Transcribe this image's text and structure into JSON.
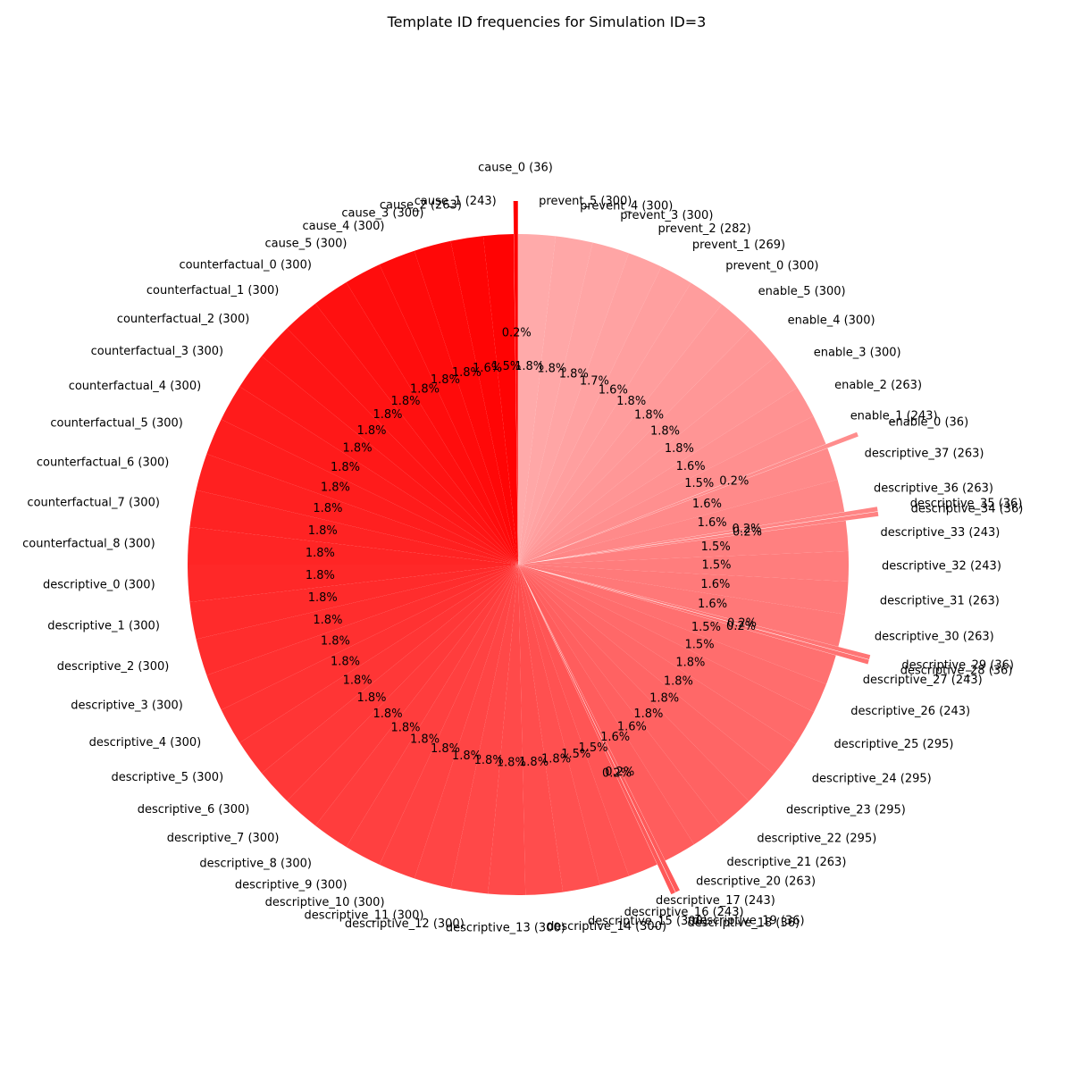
{
  "chart_data": {
    "type": "pie",
    "title": "Template ID frequencies for Simulation ID=3",
    "start_angle_deg": 90,
    "direction": "counterclockwise",
    "color_start": "#ff0000",
    "color_end": "#ffaaaa",
    "slices": [
      {
        "label": "cause_0 (36)",
        "value": 36,
        "pct": "0.2%"
      },
      {
        "label": "cause_1 (243)",
        "value": 243,
        "pct": "1.5%"
      },
      {
        "label": "cause_2 (263)",
        "value": 263,
        "pct": "1.6%"
      },
      {
        "label": "cause_3 (300)",
        "value": 300,
        "pct": "1.8%"
      },
      {
        "label": "cause_4 (300)",
        "value": 300,
        "pct": "1.8%"
      },
      {
        "label": "cause_5 (300)",
        "value": 300,
        "pct": "1.8%"
      },
      {
        "label": "counterfactual_0 (300)",
        "value": 300,
        "pct": "1.8%"
      },
      {
        "label": "counterfactual_1 (300)",
        "value": 300,
        "pct": "1.8%"
      },
      {
        "label": "counterfactual_2 (300)",
        "value": 300,
        "pct": "1.8%"
      },
      {
        "label": "counterfactual_3 (300)",
        "value": 300,
        "pct": "1.8%"
      },
      {
        "label": "counterfactual_4 (300)",
        "value": 300,
        "pct": "1.8%"
      },
      {
        "label": "counterfactual_5 (300)",
        "value": 300,
        "pct": "1.8%"
      },
      {
        "label": "counterfactual_6 (300)",
        "value": 300,
        "pct": "1.8%"
      },
      {
        "label": "counterfactual_7 (300)",
        "value": 300,
        "pct": "1.8%"
      },
      {
        "label": "counterfactual_8 (300)",
        "value": 300,
        "pct": "1.8%"
      },
      {
        "label": "descriptive_0 (300)",
        "value": 300,
        "pct": "1.8%"
      },
      {
        "label": "descriptive_1 (300)",
        "value": 300,
        "pct": "1.8%"
      },
      {
        "label": "descriptive_2 (300)",
        "value": 300,
        "pct": "1.8%"
      },
      {
        "label": "descriptive_3 (300)",
        "value": 300,
        "pct": "1.8%"
      },
      {
        "label": "descriptive_4 (300)",
        "value": 300,
        "pct": "1.8%"
      },
      {
        "label": "descriptive_5 (300)",
        "value": 300,
        "pct": "1.8%"
      },
      {
        "label": "descriptive_6 (300)",
        "value": 300,
        "pct": "1.8%"
      },
      {
        "label": "descriptive_7 (300)",
        "value": 300,
        "pct": "1.8%"
      },
      {
        "label": "descriptive_8 (300)",
        "value": 300,
        "pct": "1.8%"
      },
      {
        "label": "descriptive_9 (300)",
        "value": 300,
        "pct": "1.8%"
      },
      {
        "label": "descriptive_10 (300)",
        "value": 300,
        "pct": "1.8%"
      },
      {
        "label": "descriptive_11 (300)",
        "value": 300,
        "pct": "1.8%"
      },
      {
        "label": "descriptive_12 (300)",
        "value": 300,
        "pct": "1.8%"
      },
      {
        "label": "descriptive_13 (300)",
        "value": 300,
        "pct": "1.8%"
      },
      {
        "label": "descriptive_14 (300)",
        "value": 300,
        "pct": "1.8%"
      },
      {
        "label": "descriptive_15 (300)",
        "value": 300,
        "pct": "1.8%"
      },
      {
        "label": "descriptive_16 (243)",
        "value": 243,
        "pct": "1.5%"
      },
      {
        "label": "descriptive_17 (243)",
        "value": 243,
        "pct": "1.5%"
      },
      {
        "label": "descriptive_18 (36)",
        "value": 36,
        "pct": "0.2%"
      },
      {
        "label": "descriptive_19 (36)",
        "value": 36,
        "pct": "0.2%"
      },
      {
        "label": "descriptive_20 (263)",
        "value": 263,
        "pct": "1.6%"
      },
      {
        "label": "descriptive_21 (263)",
        "value": 263,
        "pct": "1.6%"
      },
      {
        "label": "descriptive_22 (295)",
        "value": 295,
        "pct": "1.8%"
      },
      {
        "label": "descriptive_23 (295)",
        "value": 295,
        "pct": "1.8%"
      },
      {
        "label": "descriptive_24 (295)",
        "value": 295,
        "pct": "1.8%"
      },
      {
        "label": "descriptive_25 (295)",
        "value": 295,
        "pct": "1.8%"
      },
      {
        "label": "descriptive_26 (243)",
        "value": 243,
        "pct": "1.5%"
      },
      {
        "label": "descriptive_27 (243)",
        "value": 243,
        "pct": "1.5%"
      },
      {
        "label": "descriptive_28 (36)",
        "value": 36,
        "pct": "0.2%"
      },
      {
        "label": "descriptive_29 (36)",
        "value": 36,
        "pct": "0.2%"
      },
      {
        "label": "descriptive_30 (263)",
        "value": 263,
        "pct": "1.6%"
      },
      {
        "label": "descriptive_31 (263)",
        "value": 263,
        "pct": "1.6%"
      },
      {
        "label": "descriptive_32 (243)",
        "value": 243,
        "pct": "1.5%"
      },
      {
        "label": "descriptive_33 (243)",
        "value": 243,
        "pct": "1.5%"
      },
      {
        "label": "descriptive_34 (36)",
        "value": 36,
        "pct": "0.2%"
      },
      {
        "label": "descriptive_35 (36)",
        "value": 36,
        "pct": "0.2%"
      },
      {
        "label": "descriptive_36 (263)",
        "value": 263,
        "pct": "1.6%"
      },
      {
        "label": "descriptive_37 (263)",
        "value": 263,
        "pct": "1.6%"
      },
      {
        "label": "enable_0 (36)",
        "value": 36,
        "pct": "0.2%"
      },
      {
        "label": "enable_1 (243)",
        "value": 243,
        "pct": "1.5%"
      },
      {
        "label": "enable_2 (263)",
        "value": 263,
        "pct": "1.6%"
      },
      {
        "label": "enable_3 (300)",
        "value": 300,
        "pct": "1.8%"
      },
      {
        "label": "enable_4 (300)",
        "value": 300,
        "pct": "1.8%"
      },
      {
        "label": "enable_5 (300)",
        "value": 300,
        "pct": "1.8%"
      },
      {
        "label": "prevent_0 (300)",
        "value": 300,
        "pct": "1.8%"
      },
      {
        "label": "prevent_1 (269)",
        "value": 269,
        "pct": "1.6%"
      },
      {
        "label": "prevent_2 (282)",
        "value": 282,
        "pct": "1.7%"
      },
      {
        "label": "prevent_3 (300)",
        "value": 300,
        "pct": "1.8%"
      },
      {
        "label": "prevent_4 (300)",
        "value": 300,
        "pct": "1.8%"
      },
      {
        "label": "prevent_5 (300)",
        "value": 300,
        "pct": "1.8%"
      }
    ]
  }
}
